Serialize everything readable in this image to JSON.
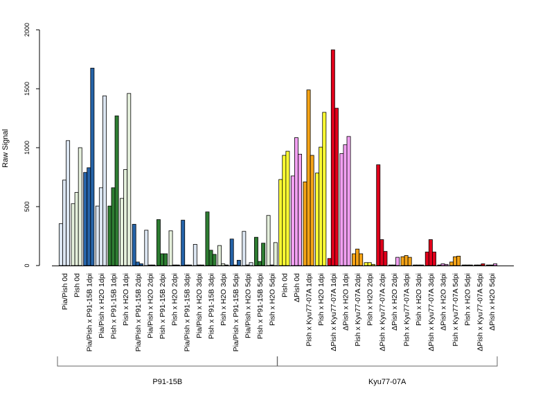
{
  "chart_data": {
    "type": "bar",
    "title": "",
    "xlabel": "",
    "ylabel": "Raw Signal",
    "ylim": [
      0,
      2000
    ],
    "yticks": [
      0,
      500,
      1000,
      1500,
      2000
    ],
    "grid": false,
    "legend": "none",
    "categories": [
      "Pia/Pish 0d",
      "Pish 0d",
      "Pia/Pish x P91-15B 1dpi",
      "Pia/Pish x H2O 1dpi",
      "Pish x P91-15B 1dpi",
      "Pish x H2O 1dpi",
      "Pia/Pish x P91-15B 2dpi",
      "Pia/Pish x H2O 2dpi",
      "Pish x P91-15B 2dpi",
      "Pish x H2O 2dpi",
      "Pia/Pish x P91-15B 3dpi",
      "Pia/Pish x H2O 3dpi",
      "Pish x P91-15B 3dpi",
      "Pish x H2O 3dpi",
      "Pia/Pish x P91-15B 5dpi",
      "Pia/Pish x H2O 5dpi",
      "Pish x P91-15B 5dpi",
      "Pish x H2O 5dpi",
      "Pish 0d",
      "ΔPish 0d",
      "Pish x Kyu77-07A 1dpi",
      "Pish x H2O 1dpi",
      "ΔPish x Kyu77-07A 1dpi",
      "ΔPish x H2O 1dpi",
      "Pish x Kyu77-07A 2dpi",
      "Pish x H2O 2dpi",
      "ΔPish x Kyu77-07A 2dpi",
      "ΔPish x H2O 2dpi",
      "Pish x Kyu77-07A 3dpi",
      "Pish x H2O 3dpi",
      "ΔPish x Kyu77-07A 3dpi",
      "ΔPish x H2O 3dpi",
      "Pish x Kyu77-07A 5dpi",
      "Pish x H2O 5dpi",
      "ΔPish x Kyu77-07A 5dpi",
      "ΔPish x H2O 5dpi"
    ],
    "colors": [
      "#dce6f2",
      "#e5f0dc",
      "#2563a8",
      "#dce6f2",
      "#2e7d32",
      "#e5f0dc",
      "#2563a8",
      "#dce6f2",
      "#2e7d32",
      "#e5f0dc",
      "#2563a8",
      "#dce6f2",
      "#2e7d32",
      "#e5f0dc",
      "#2563a8",
      "#dce6f2",
      "#2e7d32",
      "#e5f0dc",
      "#ffff33",
      "#f2a0f2",
      "#f5a316",
      "#ffff33",
      "#e0001b",
      "#f2a0f2",
      "#f5a316",
      "#ffff33",
      "#e0001b",
      "#f2a0f2",
      "#f5a316",
      "#ffff33",
      "#e0001b",
      "#f2a0f2",
      "#f5a316",
      "#ffff33",
      "#e0001b",
      "#f2a0f2"
    ],
    "values": [
      [
        355,
        725,
        1060
      ],
      [
        525,
        620,
        1000
      ],
      [
        790,
        830,
        1675
      ],
      [
        505,
        660,
        1440
      ],
      [
        505,
        660,
        1270
      ],
      [
        570,
        815,
        1460
      ],
      [
        350,
        30,
        15
      ],
      [
        300,
        5,
        5
      ],
      [
        390,
        100,
        100
      ],
      [
        295,
        5,
        5
      ],
      [
        385,
        5,
        5
      ],
      [
        180,
        5,
        5
      ],
      [
        455,
        130,
        95
      ],
      [
        170,
        15,
        5
      ],
      [
        225,
        5,
        45
      ],
      [
        290,
        5,
        25
      ],
      [
        240,
        35,
        190
      ],
      [
        425,
        5,
        195
      ],
      [
        730,
        935,
        970
      ],
      [
        760,
        1085,
        945
      ],
      [
        710,
        1490,
        935
      ],
      [
        785,
        1005,
        1300
      ],
      [
        60,
        1830,
        1335
      ],
      [
        950,
        1025,
        1095
      ],
      [
        100,
        140,
        100
      ],
      [
        25,
        25,
        10
      ],
      [
        855,
        220,
        120
      ],
      [
        5,
        5,
        70
      ],
      [
        75,
        85,
        70
      ],
      [
        5,
        5,
        5
      ],
      [
        115,
        220,
        115
      ],
      [
        5,
        15,
        10
      ],
      [
        30,
        75,
        80
      ],
      [
        5,
        5,
        5
      ],
      [
        5,
        5,
        15
      ],
      [
        5,
        5,
        15
      ]
    ],
    "groups": [
      {
        "label": "P91-15B",
        "start": 0,
        "end": 17
      },
      {
        "label": "Kyu77-07A",
        "start": 18,
        "end": 35
      }
    ]
  }
}
